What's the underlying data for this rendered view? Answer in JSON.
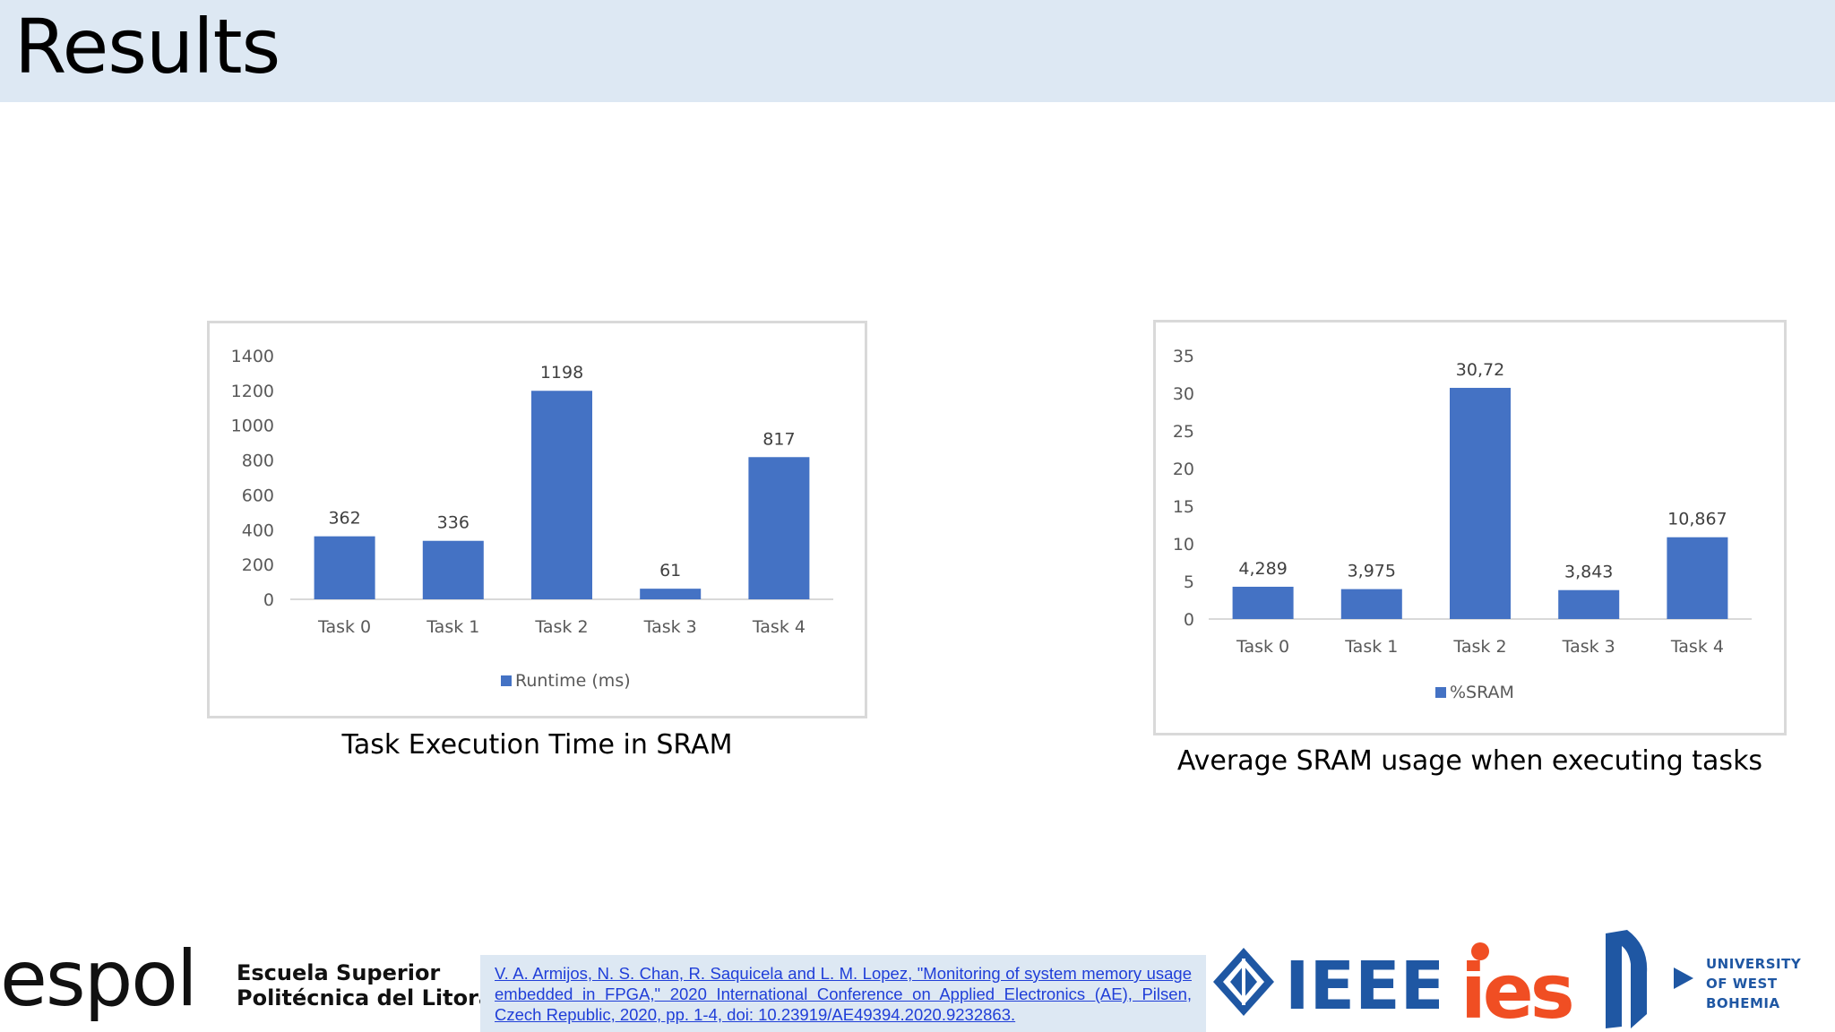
{
  "slide": {
    "title": "Results"
  },
  "chart_data": [
    {
      "type": "bar",
      "categories": [
        "Task 0",
        "Task 1",
        "Task 2",
        "Task 3",
        "Task 4"
      ],
      "series": [
        {
          "name": "Runtime (ms)",
          "values": [
            362,
            336,
            1198,
            61,
            817
          ]
        }
      ],
      "data_labels": [
        "362",
        "336",
        "1198",
        "61",
        "817"
      ],
      "ylim": [
        0,
        1400
      ],
      "yticks": [
        0,
        200,
        400,
        600,
        800,
        1000,
        1200,
        1400
      ],
      "title": "",
      "xlabel": "",
      "ylabel": "",
      "legend": "bottom",
      "grid": false,
      "bar_color": "#4472c4",
      "caption": "Task Execution Time in SRAM"
    },
    {
      "type": "bar",
      "categories": [
        "Task 0",
        "Task 1",
        "Task 2",
        "Task 3",
        "Task 4"
      ],
      "series": [
        {
          "name": "%SRAM",
          "values": [
            4.289,
            3.975,
            30.72,
            3.843,
            10.867
          ]
        }
      ],
      "data_labels": [
        "4,289",
        "3,975",
        "30,72",
        "3,843",
        "10,867"
      ],
      "ylim": [
        0,
        35
      ],
      "yticks": [
        0,
        5,
        10,
        15,
        20,
        25,
        30,
        35
      ],
      "title": "",
      "xlabel": "",
      "ylabel": "",
      "legend": "bottom",
      "grid": false,
      "bar_color": "#4472c4",
      "caption": "Average SRAM usage when executing tasks"
    }
  ],
  "footer": {
    "espol_wordmark": "espol",
    "espol_line1": "Escuela Superior",
    "espol_line2": "Politécnica del Litoral",
    "citation": "V. A. Armijos, N. S. Chan, R. Saquicela and L. M. Lopez, \"Monitoring of system memory usage embedded in FPGA,\" 2020 International Conference on Applied Electronics (AE), Pilsen, Czech Republic, 2020, pp. 1-4, doi: 10.23919/AE49394.2020.9232863.",
    "ieee_logo_text": "IEEE",
    "ies_logo_text": "ies",
    "uwb_line1": "UNIVERSITY",
    "uwb_line2": "OF WEST BOHEMIA",
    "accent_color": "#1f57a3"
  }
}
